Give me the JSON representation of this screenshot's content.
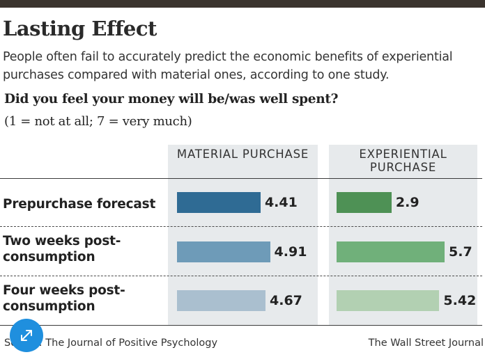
{
  "title": "Lasting Effect",
  "subtitle": "People often fail to accurately predict the economic benefits of experien­tial purchases compared with material ones, according to one study.",
  "question": "Did you feel your money will be/was well spent?",
  "scale_note": "(1 = not at all; 7 = very much)",
  "source": "Source: The Journal of Positive Psychology",
  "credit": "The Wall Street Journal",
  "chart_data": {
    "type": "bar",
    "orientation": "horizontal",
    "categories": [
      "Prepurchase forecast",
      "Two weeks post-consumption",
      "Four weeks post-consumption"
    ],
    "series": [
      {
        "name": "MATERIAL PURCHASE",
        "values": [
          4.41,
          4.91,
          4.67
        ],
        "colors": [
          "#2f6b94",
          "#6e9bb8",
          "#aabfcf"
        ]
      },
      {
        "name": "EXPERIENTIAL PURCHASE",
        "values": [
          2.9,
          5.7,
          5.42
        ],
        "colors": [
          "#4e9155",
          "#70b07a",
          "#b2d0b2"
        ]
      }
    ],
    "value_labels": {
      "MATERIAL PURCHASE": [
        "4.41",
        "4.91",
        "4.67"
      ],
      "EXPERIENTIAL PURCHASE": [
        "2.9",
        "5.7",
        "5.42"
      ]
    },
    "xlim": [
      0,
      7
    ]
  }
}
